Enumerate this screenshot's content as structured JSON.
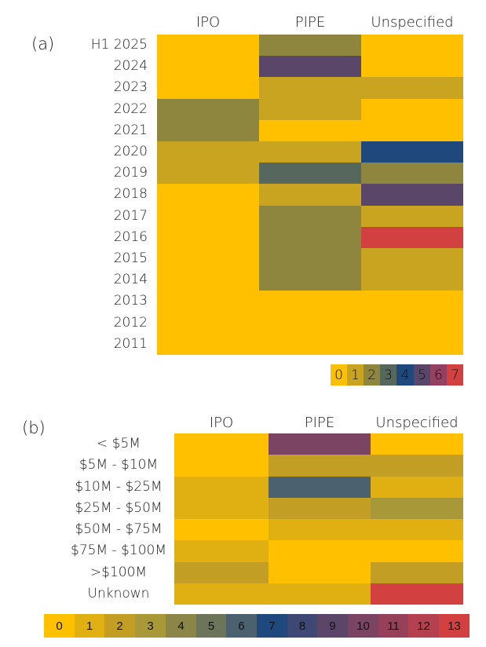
{
  "chart_data": [
    {
      "type": "heatmap",
      "panel_label": "(a)",
      "title": "",
      "columns": [
        "IPO",
        "PIPE",
        "Unspecified"
      ],
      "rows": [
        "H1 2025",
        "2024",
        "2023",
        "2022",
        "2021",
        "2020",
        "2019",
        "2018",
        "2017",
        "2016",
        "2015",
        "2014",
        "2013",
        "2012",
        "2011"
      ],
      "values": [
        [
          0,
          2,
          0
        ],
        [
          0,
          5,
          0
        ],
        [
          0,
          1,
          1
        ],
        [
          2,
          1,
          0
        ],
        [
          2,
          0,
          0
        ],
        [
          1,
          1,
          4
        ],
        [
          1,
          3,
          2
        ],
        [
          0,
          1,
          5
        ],
        [
          0,
          2,
          1
        ],
        [
          0,
          2,
          7
        ],
        [
          0,
          2,
          1
        ],
        [
          0,
          2,
          1
        ],
        [
          0,
          0,
          0
        ],
        [
          0,
          0,
          0
        ],
        [
          0,
          0,
          0
        ]
      ],
      "legend": {
        "labels": [
          "0",
          "1",
          "2",
          "3",
          "4",
          "5",
          "6",
          "7"
        ],
        "colors": [
          "#FFC000",
          "#C9A420",
          "#8E853F",
          "#56675E",
          "#1F497D",
          "#5A4669",
          "#944060",
          "#D34040"
        ],
        "placement": "bottom-right"
      }
    },
    {
      "type": "heatmap",
      "panel_label": "(b)",
      "title": "",
      "columns": [
        "IPO",
        "PIPE",
        "Unspecified"
      ],
      "rows": [
        "< $5M",
        "$5M - $10M",
        "$10M - $25M",
        "$25M - $50M",
        "$50M - $75M",
        "$75M - $100M",
        ">$100M",
        "Unknown"
      ],
      "values": [
        [
          0,
          10,
          0
        ],
        [
          0,
          2,
          2
        ],
        [
          1,
          6,
          1
        ],
        [
          1,
          2,
          3
        ],
        [
          0,
          1,
          1
        ],
        [
          1,
          0,
          0
        ],
        [
          2,
          0,
          2
        ],
        [
          1,
          1,
          13
        ]
      ],
      "legend": {
        "labels": [
          "0",
          "1",
          "2",
          "3",
          "4",
          "5",
          "6",
          "7",
          "8",
          "9",
          "10",
          "11",
          "12",
          "13"
        ],
        "colors": [
          "#FFC000",
          "#E0B012",
          "#C29F24",
          "#A89837",
          "#8C8548",
          "#6C7559",
          "#4C6170",
          "#1F497D",
          "#3F4774",
          "#5B4569",
          "#7A4462",
          "#97405A",
          "#B54050",
          "#D34040"
        ],
        "placement": "bottom"
      }
    }
  ]
}
